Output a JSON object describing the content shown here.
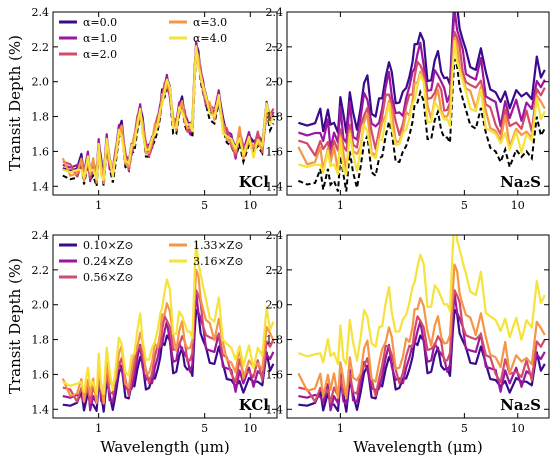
{
  "figure": {
    "ylabel": "Transit Depth (%)",
    "xlabel": "Wavelength (μm)"
  },
  "chart_data": [
    {
      "type": "line",
      "panel": "top-left",
      "label": "KCl",
      "xscale": "log",
      "xlim": [
        0.5,
        15
      ],
      "ylim": [
        1.35,
        2.4
      ],
      "xticks": [
        1,
        5,
        10
      ],
      "yticks": [
        1.4,
        1.6,
        1.8,
        2.0,
        2.2,
        2.4
      ],
      "legend": "top-left",
      "series": [
        {
          "name": "α=0.0",
          "color": "#3a0a8c",
          "offset": 0.02
        },
        {
          "name": "α=1.0",
          "color": "#9b179e",
          "offset": 0.015
        },
        {
          "name": "α=2.0",
          "color": "#d24b6b",
          "offset": 0.01
        },
        {
          "name": "α=3.0",
          "color": "#f59545",
          "offset": 0.005
        },
        {
          "name": "α=4.0",
          "color": "#f5e33b",
          "offset": 0.0
        }
      ],
      "reference": {
        "style": "dashed",
        "color": "#000000",
        "offset": -0.03
      }
    },
    {
      "type": "line",
      "panel": "top-right",
      "label": "Na₂S",
      "xscale": "log",
      "xlim": [
        0.5,
        15
      ],
      "ylim": [
        1.35,
        2.4
      ],
      "xticks": [
        1,
        5,
        10
      ],
      "yticks": [
        1.4,
        1.6,
        1.8,
        2.0,
        2.2,
        2.4
      ],
      "series": [
        {
          "name": "α=0.0",
          "color": "#3a0a8c",
          "offset": 0.28
        },
        {
          "name": "α=1.0",
          "color": "#9b179e",
          "offset": 0.2
        },
        {
          "name": "α=2.0",
          "color": "#d24b6b",
          "offset": 0.13
        },
        {
          "name": "α=3.0",
          "color": "#f59545",
          "offset": 0.07
        },
        {
          "name": "α=4.0",
          "color": "#f5e33b",
          "offset": 0.03
        }
      ],
      "reference": {
        "style": "dashed",
        "color": "#000000",
        "offset": -0.06
      }
    },
    {
      "type": "line",
      "panel": "bottom-left",
      "label": "KCl",
      "xscale": "log",
      "xlim": [
        0.5,
        15
      ],
      "ylim": [
        1.35,
        2.4
      ],
      "xticks": [
        1,
        5,
        10
      ],
      "yticks": [
        1.4,
        1.6,
        1.8,
        2.0,
        2.2,
        2.4
      ],
      "legend": "top-left",
      "series": [
        {
          "name": "0.10×Z⊙",
          "color": "#3a0a8c",
          "scale": 0.75,
          "offset": -0.04
        },
        {
          "name": "0.24×Z⊙",
          "color": "#9b179e",
          "scale": 0.82,
          "offset": -0.02
        },
        {
          "name": "0.56×Z⊙",
          "color": "#d24b6b",
          "scale": 0.9,
          "offset": 0.0
        },
        {
          "name": "1.33×Z⊙",
          "color": "#f59545",
          "scale": 1.0,
          "offset": 0.02
        },
        {
          "name": "3.16×Z⊙",
          "color": "#f5e33b",
          "scale": 1.15,
          "offset": 0.05
        }
      ]
    },
    {
      "type": "line",
      "panel": "bottom-right",
      "label": "Na₂S",
      "xscale": "log",
      "xlim": [
        0.5,
        15
      ],
      "ylim": [
        1.35,
        2.4
      ],
      "xticks": [
        1,
        5,
        10
      ],
      "yticks": [
        1.4,
        1.6,
        1.8,
        2.0,
        2.2,
        2.4
      ],
      "series": [
        {
          "name": "0.10×Z⊙",
          "color": "#3a0a8c",
          "scale": 0.75,
          "offset": -0.04
        },
        {
          "name": "0.24×Z⊙",
          "color": "#9b179e",
          "scale": 0.82,
          "offset": -0.02
        },
        {
          "name": "0.56×Z⊙",
          "color": "#d24b6b",
          "scale": 0.9,
          "offset": 0.0
        },
        {
          "name": "1.33×Z⊙",
          "color": "#f59545",
          "scale": 1.0,
          "offset": 0.05
        },
        {
          "name": "3.16×Z⊙",
          "color": "#f5e33b",
          "scale": 1.1,
          "offset": 0.22
        }
      ]
    }
  ]
}
